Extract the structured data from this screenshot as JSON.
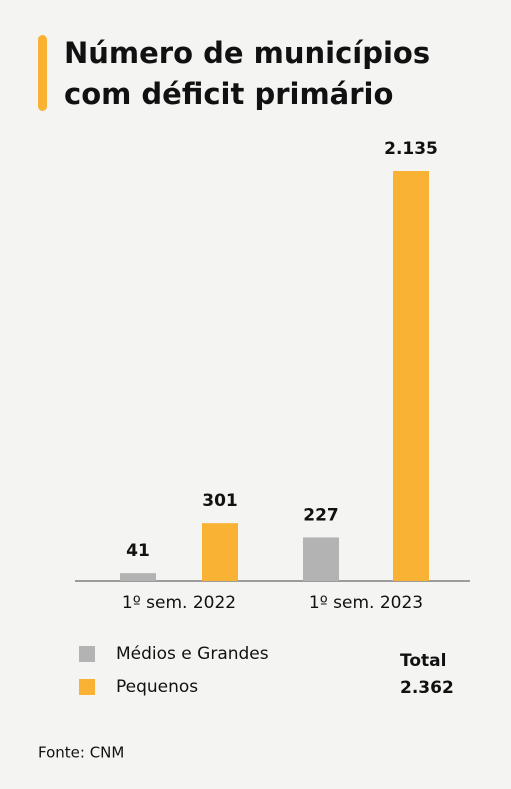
{
  "chart_data": {
    "type": "bar",
    "title": [
      "Número de municípios",
      "com déficit primário"
    ],
    "categories": [
      "1º sem. 2022",
      "1º sem. 2023"
    ],
    "series": [
      {
        "name": "Médios e Grandes",
        "color": "#b3b3b3",
        "values": [
          41,
          227
        ],
        "value_labels": [
          "41",
          "227"
        ]
      },
      {
        "name": "Pequenos",
        "color": "#f9b233",
        "values": [
          301,
          2135
        ],
        "value_labels": [
          "301",
          "2.135"
        ]
      }
    ],
    "total": {
      "label": "Total",
      "value": "2.362"
    },
    "source": "Fonte: CNM"
  }
}
